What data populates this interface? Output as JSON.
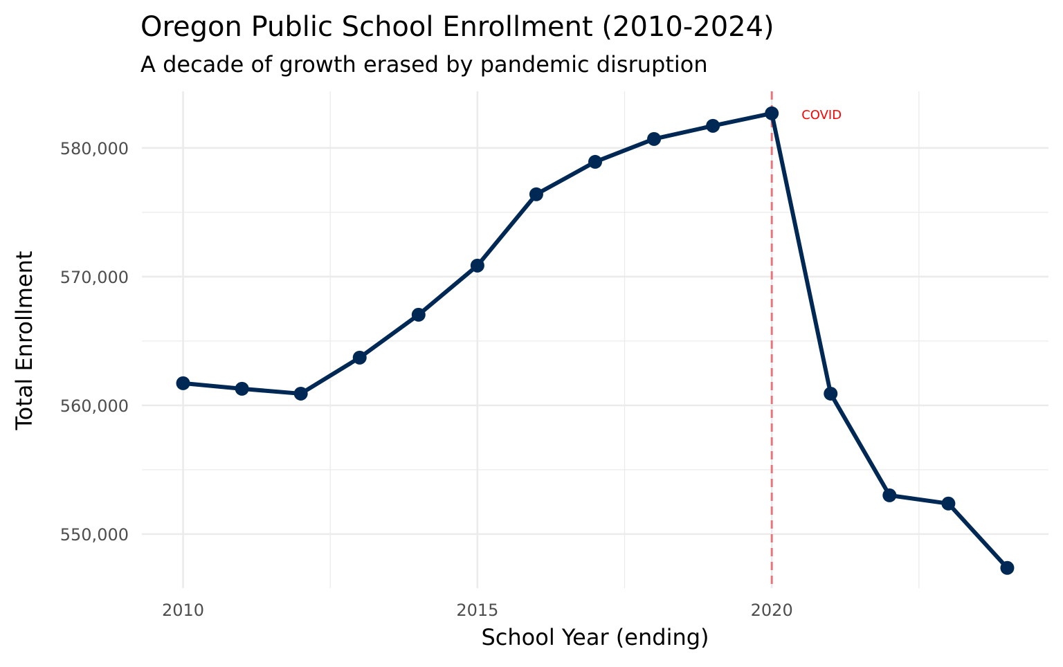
{
  "chart_data": {
    "type": "line",
    "title": "Oregon Public School Enrollment (2010-2024)",
    "subtitle": "A decade of growth erased by pandemic disruption",
    "xlabel": "School Year (ending)",
    "ylabel": "Total Enrollment",
    "x": [
      2010,
      2011,
      2012,
      2013,
      2014,
      2015,
      2016,
      2017,
      2018,
      2019,
      2020,
      2021,
      2022,
      2023,
      2024
    ],
    "values": [
      561720,
      561290,
      560910,
      563710,
      567040,
      570860,
      576400,
      578920,
      580700,
      581720,
      582690,
      560910,
      553010,
      552370,
      547370
    ],
    "xlim": [
      2009.3,
      2024.7
    ],
    "ylim": [
      545800,
      584400
    ],
    "x_ticks": [
      2010,
      2015,
      2020
    ],
    "x_tick_labels": [
      "2010",
      "2015",
      "2020"
    ],
    "y_ticks": [
      550000,
      560000,
      570000,
      580000
    ],
    "y_tick_labels": [
      "550,000",
      "560,000",
      "570,000",
      "580,000"
    ],
    "grid": true,
    "line_color": "#002855",
    "annotation": {
      "x": 2020,
      "label": "COVID",
      "line_color": "#e8747c",
      "text_color": "#ff0000",
      "style": "dashed"
    }
  }
}
